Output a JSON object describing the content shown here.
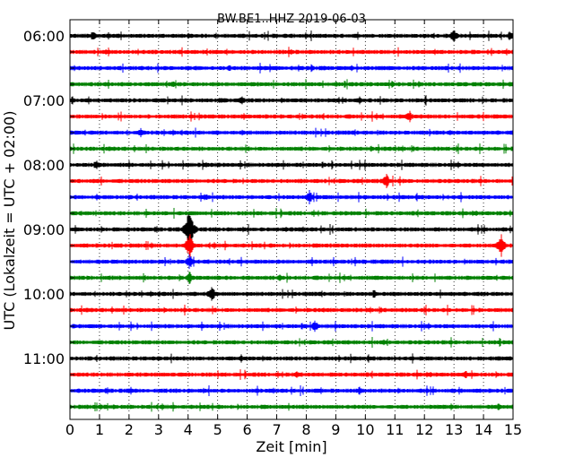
{
  "chart_data": {
    "type": "line",
    "title": "BW.BE1..HHZ 2019-06-03",
    "xlabel": "Zeit  [min]",
    "ylabel": "UTC (Lokalzeit = UTC + 02:00)",
    "xlim": [
      0,
      15
    ],
    "x_ticks": [
      0,
      1,
      2,
      3,
      4,
      5,
      6,
      7,
      8,
      9,
      10,
      11,
      12,
      13,
      14,
      15
    ],
    "x_tick_labels": [
      "0",
      "1",
      "2",
      "3",
      "4",
      "5",
      "6",
      "7",
      "8",
      "9",
      "10",
      "11",
      "12",
      "13",
      "14",
      "15"
    ],
    "grid": "vertical dotted at each minute",
    "trace_interval_minutes": 15,
    "y_tick_labels": [
      "06:00",
      "07:00",
      "08:00",
      "09:00",
      "10:00",
      "11:00"
    ],
    "color_cycle": [
      "#000000",
      "#ff0000",
      "#0000ff",
      "#008000"
    ],
    "series": [
      {
        "start": "06:00",
        "color": "#000000",
        "events": [
          [
            0.8,
            6
          ],
          [
            1.6,
            4
          ],
          [
            13.0,
            9
          ],
          [
            14.9,
            6
          ]
        ]
      },
      {
        "start": "06:15",
        "color": "#ff0000",
        "events": [
          [
            1.2,
            4
          ],
          [
            7.5,
            4
          ]
        ]
      },
      {
        "start": "06:30",
        "color": "#0000ff",
        "events": [
          [
            4.0,
            3
          ],
          [
            5.4,
            4
          ],
          [
            14.0,
            3
          ]
        ]
      },
      {
        "start": "06:45",
        "color": "#008000",
        "events": [
          [
            3.5,
            4
          ],
          [
            9.0,
            4
          ],
          [
            10.9,
            4
          ],
          [
            14.9,
            4
          ]
        ]
      },
      {
        "start": "07:00",
        "color": "#000000",
        "events": [
          [
            5.1,
            4
          ],
          [
            5.8,
            6
          ],
          [
            9.8,
            5
          ]
        ]
      },
      {
        "start": "07:15",
        "color": "#ff0000",
        "events": [
          [
            4.4,
            4
          ],
          [
            11.5,
            8
          ]
        ]
      },
      {
        "start": "07:30",
        "color": "#0000ff",
        "events": [
          [
            2.4,
            6
          ],
          [
            12.9,
            4
          ]
        ]
      },
      {
        "start": "07:45",
        "color": "#008000",
        "events": [
          [
            0.4,
            3
          ],
          [
            10.2,
            4
          ]
        ]
      },
      {
        "start": "08:00",
        "color": "#000000",
        "events": [
          [
            0.9,
            6
          ],
          [
            4.6,
            4
          ]
        ]
      },
      {
        "start": "08:15",
        "color": "#ff0000",
        "events": [
          [
            0.3,
            3
          ],
          [
            10.7,
            10
          ]
        ]
      },
      {
        "start": "08:30",
        "color": "#0000ff",
        "events": [
          [
            4.6,
            5
          ],
          [
            8.1,
            9
          ],
          [
            13.8,
            3
          ]
        ]
      },
      {
        "start": "08:45",
        "color": "#008000",
        "events": [
          [
            0.4,
            3
          ],
          [
            14.9,
            4
          ]
        ]
      },
      {
        "start": "09:00",
        "color": "#000000",
        "events": [
          [
            4.05,
            30
          ],
          [
            7.3,
            4
          ]
        ]
      },
      {
        "start": "09:15",
        "color": "#ff0000",
        "events": [
          [
            4.05,
            16
          ],
          [
            14.6,
            14
          ]
        ]
      },
      {
        "start": "09:30",
        "color": "#0000ff",
        "events": [
          [
            4.05,
            10
          ],
          [
            8.2,
            4
          ]
        ]
      },
      {
        "start": "09:45",
        "color": "#008000",
        "events": [
          [
            4.05,
            8
          ],
          [
            7.1,
            4
          ],
          [
            13.4,
            3
          ]
        ]
      },
      {
        "start": "10:00",
        "color": "#000000",
        "events": [
          [
            4.8,
            11
          ],
          [
            10.3,
            6
          ]
        ]
      },
      {
        "start": "10:15",
        "color": "#ff0000",
        "events": [
          [
            3.2,
            4
          ],
          [
            8.6,
            3
          ]
        ]
      },
      {
        "start": "10:30",
        "color": "#0000ff",
        "events": [
          [
            0.6,
            3
          ],
          [
            8.3,
            8
          ]
        ]
      },
      {
        "start": "10:45",
        "color": "#008000",
        "events": [
          [
            5.3,
            3
          ],
          [
            10.6,
            4
          ],
          [
            14.5,
            4
          ]
        ]
      },
      {
        "start": "11:00",
        "color": "#000000",
        "events": [
          [
            3.0,
            3
          ],
          [
            5.8,
            4
          ],
          [
            7.5,
            4
          ]
        ]
      },
      {
        "start": "11:15",
        "color": "#ff0000",
        "events": [
          [
            2.0,
            3
          ],
          [
            7.7,
            5
          ],
          [
            13.4,
            6
          ]
        ]
      },
      {
        "start": "11:30",
        "color": "#0000ff",
        "events": [
          [
            8.4,
            4
          ],
          [
            9.8,
            5
          ]
        ]
      },
      {
        "start": "11:45",
        "color": "#008000",
        "events": [
          [
            1.5,
            3
          ],
          [
            7.2,
            3
          ],
          [
            14.5,
            5
          ]
        ]
      }
    ]
  }
}
